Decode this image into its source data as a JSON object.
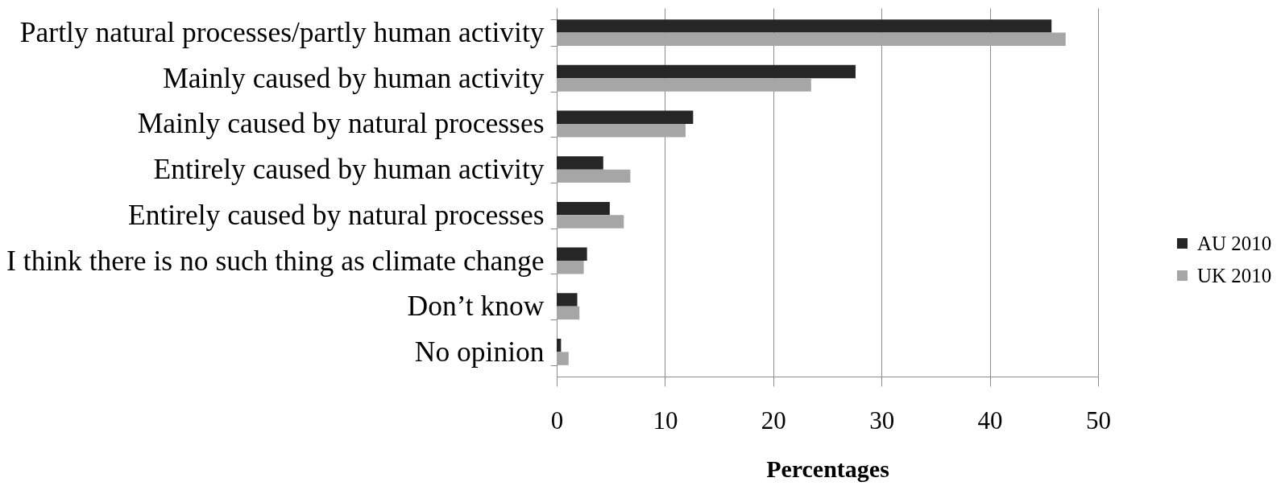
{
  "chart_data": {
    "type": "bar",
    "orientation": "horizontal",
    "categories": [
      "Partly natural processes/partly human activity",
      "Mainly caused by human activity",
      "Mainly caused by natural processes",
      "Entirely caused by human activity",
      "Entirely caused by natural processes",
      "I think there is no such thing as climate change",
      "Don’t know",
      "No opinion"
    ],
    "series": [
      {
        "name": "AU 2010",
        "color": "#262626",
        "values": [
          45.7,
          27.6,
          12.6,
          4.3,
          4.9,
          2.8,
          1.9,
          0.4
        ]
      },
      {
        "name": "UK 2010",
        "color": "#a6a6a6",
        "values": [
          47.0,
          23.5,
          11.9,
          6.8,
          6.2,
          2.5,
          2.1,
          1.1
        ]
      }
    ],
    "xlabel": "Percentages",
    "xlim": [
      0,
      50
    ],
    "xticks": [
      0,
      10,
      20,
      30,
      40,
      50
    ],
    "grid": "x",
    "legend": "right"
  }
}
